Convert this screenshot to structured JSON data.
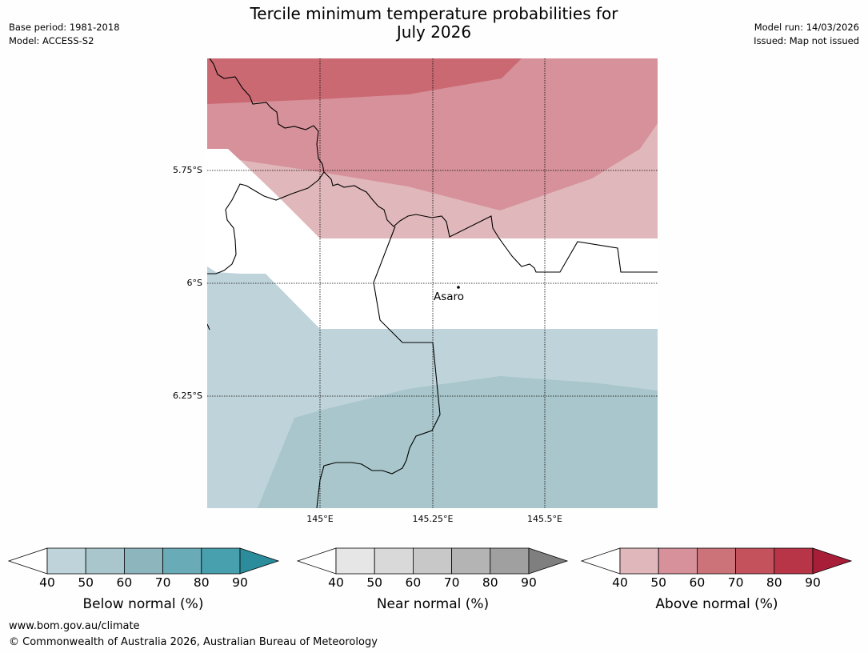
{
  "header": {
    "title_line1": "Tercile minimum temperature probabilities for",
    "title_line2": "July 2026",
    "base_period": "Base period: 1981-2018",
    "model": "Model: ACCESS-S2",
    "model_run": "Model run: 14/03/2026",
    "issued": "Issued: Map not issued"
  },
  "map": {
    "lat_labels": [
      "5.75°S",
      "6°S",
      "6.25°S"
    ],
    "lon_labels": [
      "145°E",
      "145.25°E",
      "145.5°E"
    ],
    "place": "Asaro",
    "colors": {
      "below_40": "#bfd4da",
      "below_50": "#a8c6cb",
      "above_40": "#e0b7ba",
      "above_50": "#d6919a",
      "above_60": "#ca6972"
    }
  },
  "colorbars": [
    {
      "label": "Below normal (%)",
      "ticks": [
        "40",
        "50",
        "60",
        "70",
        "80",
        "90"
      ],
      "colors": [
        "#bfd4da",
        "#a8c6cb",
        "#8cb5bd",
        "#6aabb8",
        "#489fad",
        "#2b8c9c"
      ]
    },
    {
      "label": "Near normal (%)",
      "ticks": [
        "40",
        "50",
        "60",
        "70",
        "80",
        "90"
      ],
      "colors": [
        "#e6e6e6",
        "#d9d9d9",
        "#c8c8c8",
        "#b4b4b4",
        "#a0a0a0",
        "#7f7f7f"
      ]
    },
    {
      "label": "Above normal (%)",
      "ticks": [
        "40",
        "50",
        "60",
        "70",
        "80",
        "90"
      ],
      "colors": [
        "#e0b7ba",
        "#d6919a",
        "#cc7379",
        "#c3525d",
        "#b83447",
        "#a81d38"
      ]
    }
  ],
  "footer": {
    "url": "www.bom.gov.au/climate",
    "copyright": "© Commonwealth of Australia 2026, Australian Bureau of Meteorology"
  }
}
